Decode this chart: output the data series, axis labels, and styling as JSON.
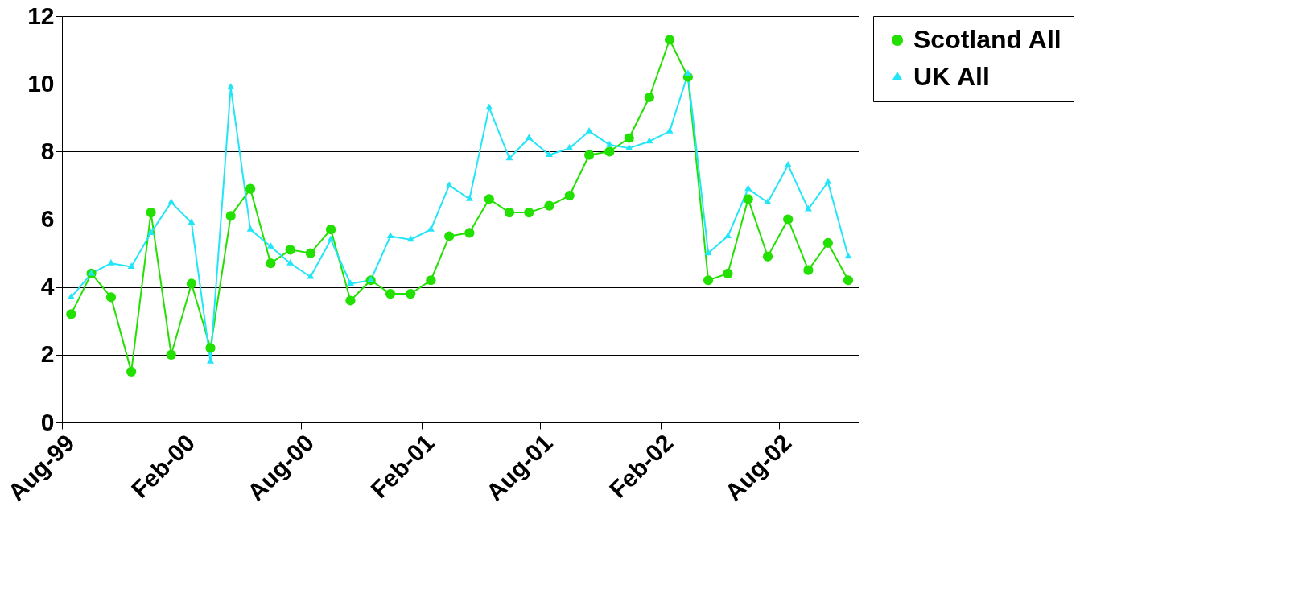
{
  "chart_data": {
    "type": "line",
    "x": [
      "1999-08-15",
      "1999-09-15",
      "1999-10-15",
      "1999-11-15",
      "1999-12-15",
      "2000-01-15",
      "2000-02-15",
      "2000-03-15",
      "2000-04-15",
      "2000-05-15",
      "2000-06-15",
      "2000-07-15",
      "2000-08-15",
      "2000-09-15",
      "2000-10-15",
      "2000-11-15",
      "2000-12-15",
      "2001-01-15",
      "2001-02-15",
      "2001-03-15",
      "2001-04-15",
      "2001-05-15",
      "2001-06-15",
      "2001-07-15",
      "2001-08-15",
      "2001-09-15",
      "2001-10-15",
      "2001-11-15",
      "2001-12-15",
      "2002-01-15",
      "2002-02-15",
      "2002-03-15",
      "2002-04-15",
      "2002-05-15",
      "2002-06-15",
      "2002-07-15",
      "2002-08-15",
      "2002-09-15",
      "2002-10-15",
      "2002-11-15"
    ],
    "series": [
      {
        "name": "Scotland All",
        "color": "#22e000",
        "marker": "circle",
        "values": [
          3.2,
          4.4,
          3.7,
          1.5,
          6.2,
          2.0,
          4.1,
          2.2,
          6.1,
          6.9,
          4.7,
          5.1,
          5.0,
          5.7,
          3.6,
          4.2,
          3.8,
          3.8,
          4.2,
          5.5,
          5.6,
          6.6,
          6.2,
          6.2,
          6.4,
          6.7,
          7.9,
          8.0,
          8.4,
          9.6,
          11.3,
          10.2,
          4.2,
          4.4,
          6.6,
          4.9,
          6.0,
          4.5,
          5.3,
          4.2
        ]
      },
      {
        "name": "UK All",
        "color": "#22e6f8",
        "marker": "triangle",
        "values": [
          3.7,
          4.4,
          4.7,
          4.6,
          5.6,
          6.5,
          5.9,
          1.8,
          9.9,
          5.7,
          5.2,
          4.7,
          4.3,
          5.4,
          4.1,
          4.2,
          5.5,
          5.4,
          5.7,
          7.0,
          6.6,
          9.3,
          7.8,
          8.4,
          7.9,
          8.1,
          8.6,
          8.2,
          8.1,
          8.3,
          8.6,
          10.3,
          5.0,
          5.5,
          6.9,
          6.5,
          7.6,
          6.3,
          7.1,
          4.9
        ]
      }
    ],
    "xlim": [
      "1999-08-01",
      "2002-12-01"
    ],
    "xticks": [
      {
        "value": "1999-08-01",
        "label": "Aug-99"
      },
      {
        "value": "2000-02-01",
        "label": "Feb-00"
      },
      {
        "value": "2000-08-01",
        "label": "Aug-00"
      },
      {
        "value": "2001-02-01",
        "label": "Feb-01"
      },
      {
        "value": "2001-08-01",
        "label": "Aug-01"
      },
      {
        "value": "2002-02-01",
        "label": "Feb-02"
      },
      {
        "value": "2002-08-01",
        "label": "Aug-02"
      }
    ],
    "ylim": [
      0,
      12
    ],
    "yticks": [
      0,
      2,
      4,
      6,
      8,
      10,
      12
    ],
    "grid": "y",
    "legend": "right",
    "line_style": "solid"
  }
}
